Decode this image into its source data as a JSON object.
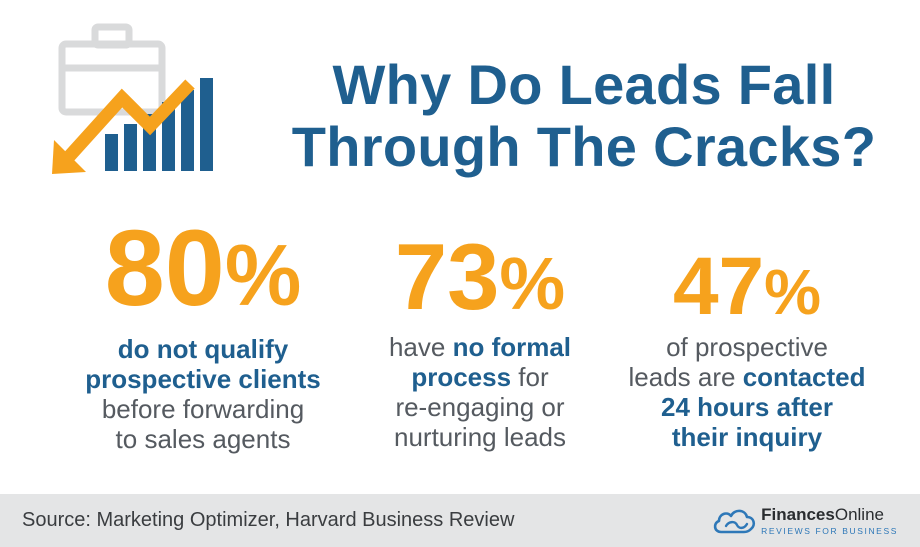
{
  "colors": {
    "title_blue": "#1f5f8f",
    "accent_orange": "#f6a21d",
    "body_gray": "#555a60",
    "footer_bg": "#e4e5e6",
    "icon_gray": "#d9dadb"
  },
  "header": {
    "icon": "briefcase-declining-chart-icon",
    "title_line1": "Why Do Leads Fall",
    "title_line2": "Through The Cracks?"
  },
  "stats": [
    {
      "number": "80",
      "percent_sign": "%",
      "value": 80,
      "desc_line1": "do not qualify",
      "desc_line2": "prospective clients",
      "desc_line3": "before forwarding",
      "desc_line4": "to sales agents"
    },
    {
      "number": "73",
      "percent_sign": "%",
      "value": 73,
      "desc_line1_a": "have ",
      "desc_line1_b": "no formal",
      "desc_line2_a": "process",
      "desc_line2_b": " for",
      "desc_line3": "re-engaging or",
      "desc_line4": "nurturing leads"
    },
    {
      "number": "47",
      "percent_sign": "%",
      "value": 47,
      "desc_line1": "of prospective",
      "desc_line2_a": "leads are ",
      "desc_line2_b": "contacted",
      "desc_line3": "24 hours after",
      "desc_line4": "their inquiry"
    }
  ],
  "footer": {
    "source": "Source: Marketing Optimizer, Harvard Business Review",
    "brand_name_bold": "Finances",
    "brand_name_regular": "Online",
    "brand_tagline": "REVIEWS FOR BUSINESS",
    "brand_icon": "cloud-logo-icon"
  }
}
